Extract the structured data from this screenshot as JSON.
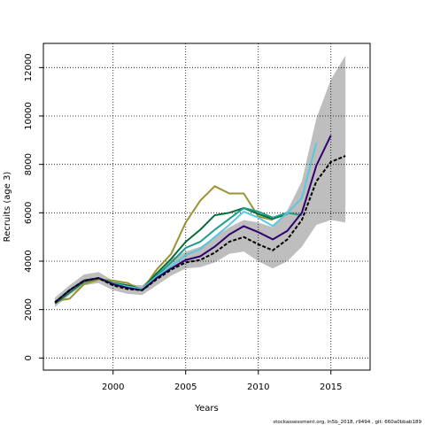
{
  "chart_data": {
    "type": "line",
    "title": "",
    "xlabel": "Years",
    "ylabel": "Recruits (age 3)",
    "footnote": "stockassessment.org, ln5b_2018, r9494 , git: 660a0bbab189",
    "xlim": [
      1995.2,
      2017.7
    ],
    "ylim": [
      -500,
      13000
    ],
    "x_ticks": [
      2000,
      2005,
      2010,
      2015
    ],
    "y_ticks": [
      0,
      2000,
      4000,
      6000,
      8000,
      10000,
      12000
    ],
    "grid": "dotted",
    "confidence_band": {
      "color": "#bebebe",
      "x": [
        1996,
        1997,
        1998,
        1999,
        2000,
        2001,
        2002,
        2003,
        2004,
        2005,
        2006,
        2007,
        2008,
        2009,
        2010,
        2011,
        2012,
        2013,
        2014,
        2015,
        2016
      ],
      "lower": [
        2100,
        2600,
        3000,
        3100,
        2800,
        2650,
        2600,
        3000,
        3400,
        3700,
        3750,
        3950,
        4300,
        4400,
        4000,
        3700,
        4000,
        4600,
        5500,
        5700,
        5600
      ],
      "upper": [
        2500,
        3000,
        3450,
        3550,
        3200,
        3050,
        3000,
        3500,
        4100,
        4400,
        4600,
        5000,
        5400,
        5700,
        5600,
        5400,
        6100,
        7300,
        9900,
        11500,
        12500
      ]
    },
    "series": [
      {
        "color": "#000000",
        "dashed": true,
        "x": [
          1996,
          1997,
          1998,
          1999,
          2000,
          2001,
          2002,
          2003,
          2004,
          2005,
          2006,
          2007,
          2008,
          2009,
          2010,
          2011,
          2012,
          2013,
          2014,
          2015,
          2016
        ],
        "y": [
          2300,
          2800,
          3200,
          3300,
          3000,
          2850,
          2800,
          3250,
          3650,
          3950,
          4050,
          4350,
          4800,
          5000,
          4700,
          4450,
          4900,
          5700,
          7300,
          8100,
          8350
        ]
      },
      {
        "color": "#31006f",
        "x": [
          1996,
          1997,
          1998,
          1999,
          2000,
          2001,
          2002,
          2003,
          2004,
          2005,
          2006,
          2007,
          2008,
          2009,
          2010,
          2011,
          2012,
          2013,
          2014,
          2015
        ],
        "y": [
          2300,
          2800,
          3200,
          3300,
          3050,
          2900,
          2800,
          3300,
          3700,
          4050,
          4200,
          4600,
          5100,
          5450,
          5200,
          4900,
          5250,
          6000,
          7950,
          9200
        ]
      },
      {
        "color": "#5bc8e0",
        "x": [
          1996,
          1997,
          1998,
          1999,
          2000,
          2001,
          2002,
          2003,
          2004,
          2005,
          2006,
          2007,
          2008,
          2009,
          2010,
          2011,
          2012,
          2013,
          2014
        ],
        "y": [
          2300,
          2800,
          3200,
          3300,
          3050,
          2950,
          2850,
          3350,
          3800,
          4250,
          4500,
          5000,
          5500,
          6050,
          5800,
          5450,
          6000,
          6600,
          8900
        ]
      },
      {
        "color": "#1a9e8a",
        "x": [
          1996,
          1997,
          1998,
          1999,
          2000,
          2001,
          2002,
          2003,
          2004,
          2005,
          2006,
          2007,
          2008,
          2009,
          2010,
          2011,
          2012,
          2013
        ],
        "y": [
          2300,
          2750,
          3200,
          3300,
          3100,
          2950,
          2850,
          3400,
          3950,
          4550,
          4800,
          5300,
          5750,
          6200,
          6050,
          5800,
          6000,
          5900
        ]
      },
      {
        "color": "#0a6b3a",
        "x": [
          1996,
          1997,
          1998,
          1999,
          2000,
          2001,
          2002,
          2003,
          2004,
          2005,
          2006,
          2007,
          2008,
          2009,
          2010,
          2011,
          2012
        ],
        "y": [
          2250,
          2700,
          3150,
          3300,
          3100,
          3000,
          2850,
          3500,
          4100,
          4800,
          5300,
          5900,
          6000,
          6200,
          5950,
          5750,
          5950
        ]
      },
      {
        "color": "#999430",
        "x": [
          1996,
          1997,
          1998,
          1999,
          2000,
          2001,
          2002,
          2003,
          2004,
          2005,
          2006,
          2007,
          2008,
          2009,
          2010,
          2011
        ],
        "y": [
          2350,
          2450,
          3050,
          3250,
          3200,
          3100,
          2800,
          3650,
          4300,
          5600,
          6500,
          7100,
          6800,
          6800,
          5850,
          5700
        ]
      }
    ]
  }
}
